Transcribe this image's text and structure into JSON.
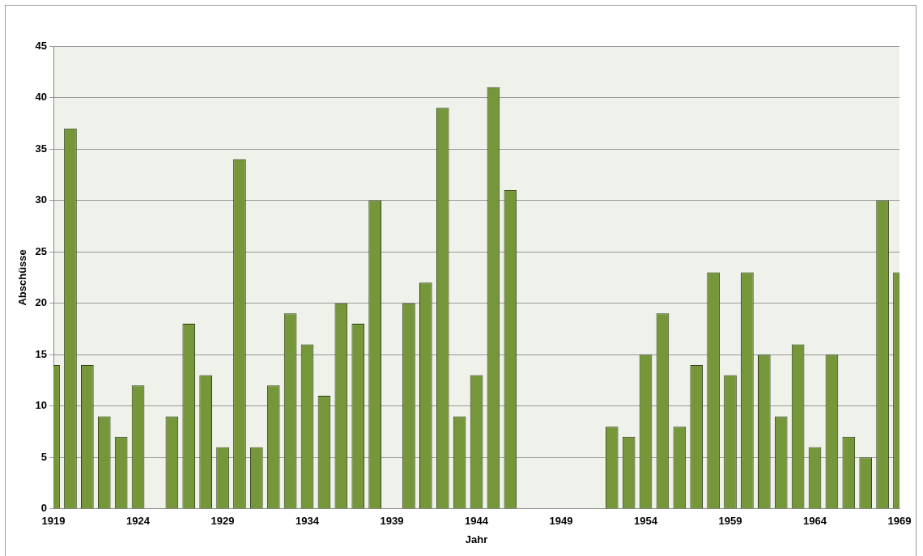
{
  "chart_data": {
    "type": "bar",
    "xlabel": "Jahr",
    "ylabel": "Abschüsse",
    "categories": [
      "1919",
      null,
      null,
      null,
      null,
      "1924",
      null,
      null,
      null,
      null,
      "1929",
      null,
      null,
      null,
      null,
      "1934",
      null,
      null,
      null,
      null,
      "1939",
      null,
      null,
      null,
      null,
      "1944",
      null,
      null,
      null,
      null,
      "1949",
      null,
      null,
      null,
      null,
      "1954",
      null,
      null,
      null,
      null,
      "1959",
      null,
      null,
      null,
      null,
      "1964",
      null,
      null,
      null,
      null,
      "1969"
    ],
    "values": [
      14,
      37,
      14,
      9,
      7,
      12,
      null,
      9,
      18,
      13,
      6,
      34,
      6,
      12,
      19,
      16,
      11,
      20,
      18,
      30,
      null,
      20,
      22,
      39,
      9,
      13,
      41,
      31,
      null,
      null,
      null,
      null,
      null,
      8,
      7,
      15,
      19,
      8,
      14,
      23,
      13,
      23,
      15,
      9,
      16,
      6,
      15,
      7,
      5,
      30,
      23
    ],
    "color": "#76963a",
    "ylim": [
      0,
      45
    ],
    "yticks": [
      0,
      5,
      10,
      15,
      20,
      25,
      30,
      35,
      40,
      45
    ],
    "grid": "y"
  }
}
